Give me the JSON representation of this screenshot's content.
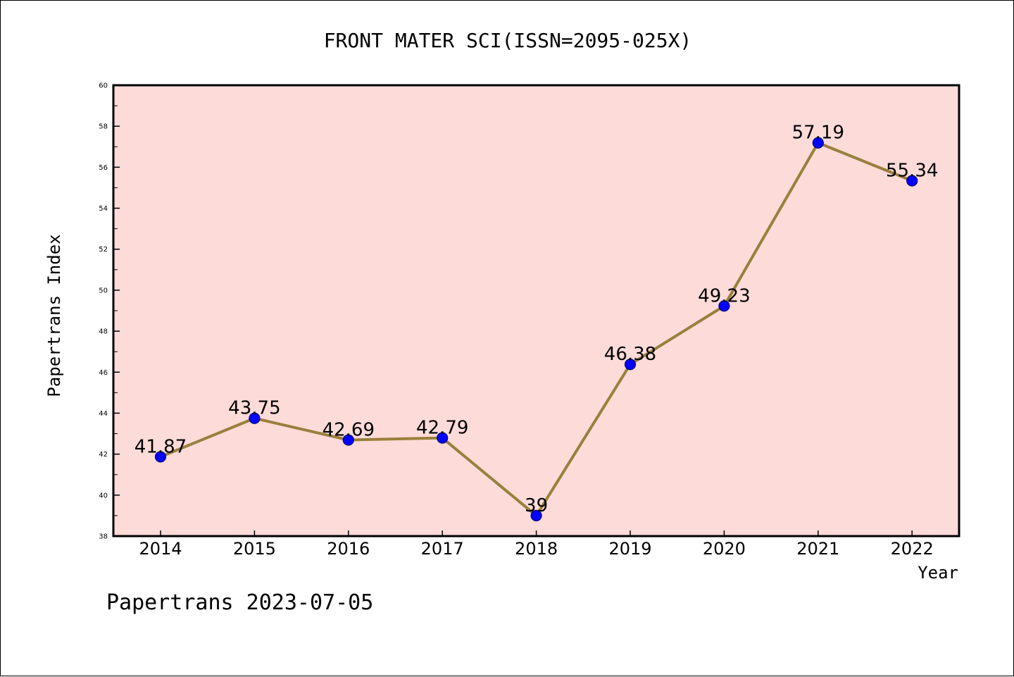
{
  "chart_data": {
    "type": "line",
    "title": "FRONT MATER SCI(ISSN=2095-025X)",
    "xlabel": "Year",
    "ylabel": "Papertrans Index",
    "footer": "Papertrans 2023-07-05",
    "categories": [
      "2014",
      "2015",
      "2016",
      "2017",
      "2018",
      "2019",
      "2020",
      "2021",
      "2022"
    ],
    "values": [
      41.87,
      43.75,
      42.69,
      42.79,
      39,
      46.38,
      49.23,
      57.19,
      55.34
    ],
    "data_labels": [
      "41.87",
      "43.75",
      "42.69",
      "42.79",
      "39",
      "46.38",
      "49.23",
      "57.19",
      "55.34"
    ],
    "ylim": [
      38,
      60
    ],
    "y_ticks": [
      "38",
      "40",
      "42",
      "44",
      "46",
      "48",
      "50",
      "52",
      "54",
      "56",
      "58",
      "60"
    ],
    "grid": false,
    "legend": "none",
    "colors": {
      "plot_background": "#fddbd8",
      "line": "#9a7f3c",
      "marker": "#0000ff",
      "marker_edge": "#00007a"
    }
  }
}
